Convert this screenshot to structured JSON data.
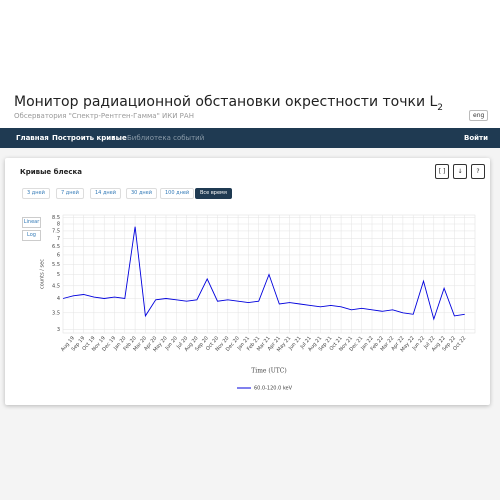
{
  "header": {
    "title": "Монитор радиационной обстановки окрестности точки L",
    "title_sub": "2",
    "subtitle": "Обсерватория \"Спектр-Рентген-Гамма\" ИКИ РАН",
    "lang_button": "eng"
  },
  "nav": {
    "items": [
      "Главная",
      "Построить кривые",
      "Библиотека событий"
    ],
    "login": "Войти"
  },
  "card": {
    "title": "Кривые блеска",
    "tools": [
      "[ ]",
      "↓",
      "?"
    ],
    "ranges": [
      "3 дней",
      "7 дней",
      "14 дней",
      "30 дней",
      "100 дней",
      "Все время"
    ],
    "active_range": 5,
    "scale_buttons": [
      "Linear",
      "Log"
    ]
  },
  "chart_data": {
    "type": "line",
    "y_label": "counts / sec",
    "x_label": "Time (UTC)",
    "log_y": true,
    "grid": true,
    "xlim": [
      "2019-07",
      "2022-11"
    ],
    "ylim": [
      2.9,
      8.7
    ],
    "yticks": [
      3,
      3.5,
      4,
      4.5,
      5,
      5.5,
      6,
      6.5,
      7,
      7.5,
      8,
      8.5
    ],
    "xticks": [
      {
        "value": "2019-08",
        "label": "Aug 19"
      },
      {
        "value": "2019-09",
        "label": "Sep 19"
      },
      {
        "value": "2019-10",
        "label": "Oct 19"
      },
      {
        "value": "2019-11",
        "label": "Nov 19"
      },
      {
        "value": "2019-12",
        "label": "Dec 19"
      },
      {
        "value": "2020-01",
        "label": "Jan 20"
      },
      {
        "value": "2020-02",
        "label": "Feb 20"
      },
      {
        "value": "2020-03",
        "label": "Mar 20"
      },
      {
        "value": "2020-04",
        "label": "Apr 20"
      },
      {
        "value": "2020-05",
        "label": "May 20"
      },
      {
        "value": "2020-06",
        "label": "Jun 20"
      },
      {
        "value": "2020-07",
        "label": "Jul 20"
      },
      {
        "value": "2020-08",
        "label": "Aug 20"
      },
      {
        "value": "2020-09",
        "label": "Sep 20"
      },
      {
        "value": "2020-10",
        "label": "Oct 20"
      },
      {
        "value": "2020-11",
        "label": "Nov 20"
      },
      {
        "value": "2020-12",
        "label": "Dec 20"
      },
      {
        "value": "2021-01",
        "label": "Jan 21"
      },
      {
        "value": "2021-02",
        "label": "Feb 21"
      },
      {
        "value": "2021-03",
        "label": "Mar 21"
      },
      {
        "value": "2021-04",
        "label": "Apr 21"
      },
      {
        "value": "2021-05",
        "label": "May 21"
      },
      {
        "value": "2021-06",
        "label": "Jun 21"
      },
      {
        "value": "2021-07",
        "label": "Jul 21"
      },
      {
        "value": "2021-08",
        "label": "Aug 21"
      },
      {
        "value": "2021-09",
        "label": "Sep 21"
      },
      {
        "value": "2021-10",
        "label": "Oct 21"
      },
      {
        "value": "2021-11",
        "label": "Nov 21"
      },
      {
        "value": "2021-12",
        "label": "Dec 21"
      },
      {
        "value": "2022-01",
        "label": "Jan 22"
      },
      {
        "value": "2022-02",
        "label": "Feb 22"
      },
      {
        "value": "2022-03",
        "label": "Mar 22"
      },
      {
        "value": "2022-04",
        "label": "Apr 22"
      },
      {
        "value": "2022-05",
        "label": "May 22"
      },
      {
        "value": "2022-06",
        "label": "Jun 22"
      },
      {
        "value": "2022-07",
        "label": "Jul 22"
      },
      {
        "value": "2022-08",
        "label": "Aug 22"
      },
      {
        "value": "2022-09",
        "label": "Sep 22"
      },
      {
        "value": "2022-10",
        "label": "Oct 22"
      }
    ],
    "x": [
      "2019-07",
      "2019-08",
      "2019-09",
      "2019-10",
      "2019-11",
      "2019-12",
      "2020-01",
      "2020-02",
      "2020-03",
      "2020-04",
      "2020-05",
      "2020-06",
      "2020-07",
      "2020-08",
      "2020-09",
      "2020-10",
      "2020-11",
      "2020-12",
      "2021-01",
      "2021-02",
      "2021-03",
      "2021-04",
      "2021-05",
      "2021-06",
      "2021-07",
      "2021-08",
      "2021-09",
      "2021-10",
      "2021-11",
      "2021-12",
      "2022-01",
      "2022-02",
      "2022-03",
      "2022-04",
      "2022-05",
      "2022-06",
      "2022-07",
      "2022-08",
      "2022-09",
      "2022-10"
    ],
    "series": [
      {
        "name": "60.0-120.0 keV",
        "color": "#0000dd",
        "values": [
          4.0,
          4.1,
          4.15,
          4.05,
          4.0,
          4.05,
          4.0,
          7.8,
          3.4,
          3.95,
          4.0,
          3.95,
          3.9,
          3.95,
          4.8,
          3.9,
          3.95,
          3.9,
          3.85,
          3.9,
          5.0,
          3.8,
          3.85,
          3.8,
          3.75,
          3.7,
          3.75,
          3.7,
          3.6,
          3.65,
          3.6,
          3.55,
          3.6,
          3.5,
          3.45,
          4.7,
          3.3,
          4.4,
          3.4,
          3.45
        ]
      }
    ]
  }
}
